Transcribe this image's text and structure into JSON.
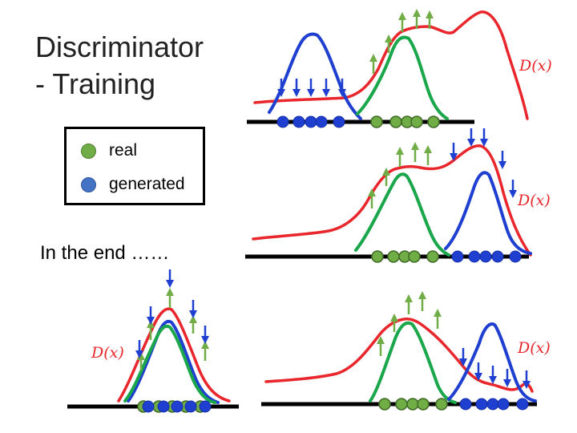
{
  "title": {
    "line1": "Discriminator",
    "line2": "- Training"
  },
  "legend": {
    "real": {
      "label": "real",
      "color": "#70ad47",
      "stroke": "#4f7d2e"
    },
    "generated": {
      "label": "generated",
      "color": "#4472c4",
      "stroke": "#2f55a0"
    }
  },
  "caption": "In the end ……",
  "discriminator_label": "D(x)",
  "colors": {
    "discriminator": "#e8262b",
    "real": "#1aa64a",
    "generated": "#1f3fd0",
    "up_arrow": "#70ad47",
    "down_arrow": "#1f3fd0",
    "axis": "#000000"
  },
  "panels": [
    {
      "id": "step-1",
      "label": "D(x)",
      "real_points": 5,
      "generated_points": 5
    },
    {
      "id": "step-2",
      "label": "D(x)",
      "real_points": 5,
      "generated_points": 5
    },
    {
      "id": "step-3",
      "label": "D(x)",
      "real_points": 5,
      "generated_points": 5
    },
    {
      "id": "end",
      "label": "D(x)",
      "real_points": 5,
      "generated_points": 5
    }
  ]
}
